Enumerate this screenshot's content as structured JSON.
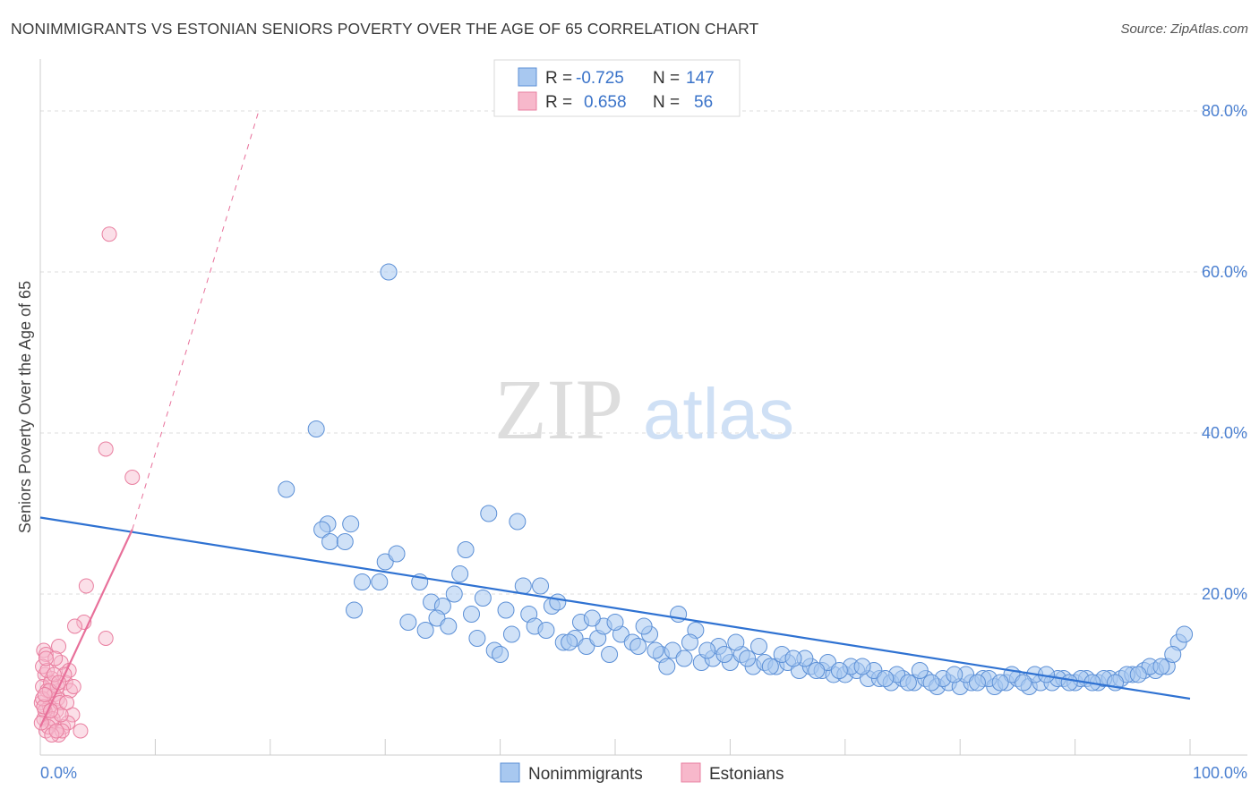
{
  "title": "NONIMMIGRANTS VS ESTONIAN SENIORS POVERTY OVER THE AGE OF 65 CORRELATION CHART",
  "source": "Source: ZipAtlas.com",
  "watermark": {
    "zip": "ZIP",
    "atlas": "atlas"
  },
  "legend_top": [
    {
      "r_label": "R =",
      "r_value": "-0.725",
      "n_label": "N =",
      "n_value": "147",
      "color": "#a8c8f0",
      "stroke": "#5b8fd6"
    },
    {
      "r_label": "R =",
      "r_value": "0.658",
      "n_label": "N =",
      "n_value": "56",
      "color": "#f7b8cb",
      "stroke": "#e97fa0"
    }
  ],
  "legend_bottom": [
    "Nonimmigrants",
    "Estonians"
  ],
  "chart_data": {
    "type": "scatter",
    "xlabel": "",
    "ylabel": "Seniors Poverty Over the Age of 65",
    "xlim": [
      0,
      100
    ],
    "ylim": [
      0,
      85
    ],
    "x_tick_labels": [
      "0.0%",
      "100.0%"
    ],
    "y_ticks": [
      20,
      40,
      60,
      80
    ],
    "y_tick_labels": [
      "20.0%",
      "40.0%",
      "60.0%",
      "80.0%"
    ],
    "grid": true,
    "colors": {
      "blue": "#5b8fd6",
      "blue_fill": "#a8c8f0",
      "pink": "#e97fa0",
      "pink_fill": "#f7b8cb",
      "blue_line": "#2f72d2",
      "pink_line": "#e8709a"
    },
    "trendlines": [
      {
        "series": "Nonimmigrants",
        "x": [
          0,
          100
        ],
        "y": [
          29.5,
          7.0
        ],
        "style": "solid"
      },
      {
        "series": "Estonians",
        "x": [
          0,
          8
        ],
        "y": [
          3.5,
          28.0
        ],
        "style": "solid"
      },
      {
        "series": "Estonians",
        "x": [
          8,
          19
        ],
        "y": [
          28.0,
          80.0
        ],
        "style": "dashed"
      }
    ],
    "series": [
      {
        "name": "Nonimmigrants",
        "points": [
          [
            30.3,
            60.0
          ],
          [
            24.0,
            40.5
          ],
          [
            21.4,
            33.0
          ],
          [
            25.0,
            28.7
          ],
          [
            24.5,
            28.0
          ],
          [
            25.2,
            26.5
          ],
          [
            27.0,
            28.7
          ],
          [
            26.5,
            26.5
          ],
          [
            28.0,
            21.5
          ],
          [
            27.3,
            18.0
          ],
          [
            29.5,
            21.5
          ],
          [
            30.0,
            24.0
          ],
          [
            31.0,
            25.0
          ],
          [
            33.0,
            21.5
          ],
          [
            34.0,
            19.0
          ],
          [
            35.0,
            18.5
          ],
          [
            32.0,
            16.5
          ],
          [
            33.5,
            15.5
          ],
          [
            34.5,
            17.0
          ],
          [
            35.5,
            16.0
          ],
          [
            36.0,
            20.0
          ],
          [
            37.5,
            17.5
          ],
          [
            38.0,
            14.5
          ],
          [
            39.5,
            13.0
          ],
          [
            40.0,
            12.5
          ],
          [
            41.0,
            15.0
          ],
          [
            42.5,
            17.5
          ],
          [
            43.0,
            16.0
          ],
          [
            44.0,
            15.5
          ],
          [
            45.5,
            14.0
          ],
          [
            46.5,
            14.5
          ],
          [
            47.5,
            13.5
          ],
          [
            48.5,
            14.5
          ],
          [
            49.0,
            16.0
          ],
          [
            50.5,
            15.0
          ],
          [
            51.5,
            14.0
          ],
          [
            52.0,
            13.5
          ],
          [
            53.0,
            15.0
          ],
          [
            54.0,
            12.5
          ],
          [
            55.0,
            13.0
          ],
          [
            56.0,
            12.0
          ],
          [
            57.5,
            11.5
          ],
          [
            58.5,
            12.0
          ],
          [
            59.0,
            13.5
          ],
          [
            60.0,
            11.5
          ],
          [
            61.0,
            12.5
          ],
          [
            62.0,
            11.0
          ],
          [
            63.0,
            11.5
          ],
          [
            64.0,
            11.0
          ],
          [
            65.0,
            11.5
          ],
          [
            66.0,
            10.5
          ],
          [
            67.0,
            11.0
          ],
          [
            68.0,
            10.5
          ],
          [
            69.0,
            10.0
          ],
          [
            70.0,
            10.0
          ],
          [
            71.0,
            10.5
          ],
          [
            72.0,
            9.5
          ],
          [
            73.0,
            9.5
          ],
          [
            74.0,
            9.0
          ],
          [
            75.0,
            9.5
          ],
          [
            76.0,
            9.0
          ],
          [
            77.0,
            9.5
          ],
          [
            78.0,
            8.5
          ],
          [
            79.0,
            9.0
          ],
          [
            80.0,
            8.5
          ],
          [
            81.0,
            9.0
          ],
          [
            82.0,
            9.5
          ],
          [
            83.0,
            8.5
          ],
          [
            84.0,
            9.0
          ],
          [
            85.0,
            9.5
          ],
          [
            86.0,
            8.5
          ],
          [
            87.0,
            9.0
          ],
          [
            88.0,
            9.0
          ],
          [
            89.0,
            9.5
          ],
          [
            90.0,
            9.0
          ],
          [
            91.0,
            9.5
          ],
          [
            92.0,
            9.0
          ],
          [
            93.0,
            9.5
          ],
          [
            94.0,
            9.5
          ],
          [
            95.0,
            10.0
          ],
          [
            96.0,
            10.5
          ],
          [
            97.0,
            10.5
          ],
          [
            98.0,
            11.0
          ],
          [
            99.0,
            14.0
          ],
          [
            99.5,
            15.0
          ],
          [
            96.5,
            11.0
          ],
          [
            94.5,
            10.0
          ],
          [
            92.5,
            9.5
          ],
          [
            36.5,
            22.5
          ],
          [
            42.0,
            21.0
          ],
          [
            44.5,
            18.5
          ],
          [
            46.0,
            14.0
          ],
          [
            47.0,
            16.5
          ],
          [
            52.5,
            16.0
          ],
          [
            55.5,
            17.5
          ],
          [
            57.0,
            15.5
          ],
          [
            58.0,
            13.0
          ],
          [
            60.5,
            14.0
          ],
          [
            62.5,
            13.5
          ],
          [
            64.5,
            12.5
          ],
          [
            66.5,
            12.0
          ],
          [
            68.5,
            11.5
          ],
          [
            70.5,
            11.0
          ],
          [
            72.5,
            10.5
          ],
          [
            74.5,
            10.0
          ],
          [
            76.5,
            10.5
          ],
          [
            78.5,
            9.5
          ],
          [
            80.5,
            10.0
          ],
          [
            82.5,
            9.5
          ],
          [
            84.5,
            10.0
          ],
          [
            86.5,
            10.0
          ],
          [
            88.5,
            9.5
          ],
          [
            90.5,
            9.5
          ],
          [
            91.5,
            9.0
          ],
          [
            93.5,
            9.0
          ],
          [
            95.5,
            10.0
          ],
          [
            97.5,
            11.0
          ],
          [
            98.5,
            12.5
          ],
          [
            45.0,
            19.0
          ],
          [
            37.0,
            25.5
          ],
          [
            39.0,
            30.0
          ],
          [
            41.5,
            29.0
          ],
          [
            43.5,
            21.0
          ],
          [
            40.5,
            18.0
          ],
          [
            38.5,
            19.5
          ],
          [
            48.0,
            17.0
          ],
          [
            50.0,
            16.5
          ],
          [
            53.5,
            13.0
          ],
          [
            56.5,
            14.0
          ],
          [
            59.5,
            12.5
          ],
          [
            61.5,
            12.0
          ],
          [
            63.5,
            11.0
          ],
          [
            65.5,
            12.0
          ],
          [
            67.5,
            10.5
          ],
          [
            69.5,
            10.5
          ],
          [
            71.5,
            11.0
          ],
          [
            73.5,
            9.5
          ],
          [
            75.5,
            9.0
          ],
          [
            77.5,
            9.0
          ],
          [
            79.5,
            10.0
          ],
          [
            81.5,
            9.0
          ],
          [
            83.5,
            9.0
          ],
          [
            85.5,
            9.0
          ],
          [
            87.5,
            10.0
          ],
          [
            89.5,
            9.0
          ],
          [
            54.5,
            11.0
          ],
          [
            49.5,
            12.5
          ]
        ]
      },
      {
        "name": "Estonians",
        "points": [
          [
            6.0,
            64.7
          ],
          [
            5.7,
            38.0
          ],
          [
            8.0,
            34.5
          ],
          [
            4.0,
            21.0
          ],
          [
            3.8,
            16.5
          ],
          [
            3.0,
            16.0
          ],
          [
            5.7,
            14.5
          ],
          [
            1.6,
            13.5
          ],
          [
            0.3,
            13.0
          ],
          [
            0.5,
            12.5
          ],
          [
            1.8,
            11.5
          ],
          [
            2.5,
            10.5
          ],
          [
            0.4,
            10.0
          ],
          [
            1.0,
            9.5
          ],
          [
            2.2,
            9.0
          ],
          [
            0.2,
            8.5
          ],
          [
            0.6,
            8.0
          ],
          [
            1.2,
            7.5
          ],
          [
            1.5,
            7.0
          ],
          [
            0.1,
            6.5
          ],
          [
            0.8,
            6.0
          ],
          [
            1.4,
            5.5
          ],
          [
            2.8,
            5.0
          ],
          [
            0.3,
            4.5
          ],
          [
            1.0,
            4.0
          ],
          [
            2.0,
            3.5
          ],
          [
            0.5,
            3.0
          ],
          [
            1.6,
            2.5
          ],
          [
            3.5,
            3.0
          ],
          [
            0.2,
            11.0
          ],
          [
            1.3,
            12.0
          ],
          [
            2.6,
            8.0
          ],
          [
            0.9,
            9.0
          ],
          [
            1.7,
            6.5
          ],
          [
            0.4,
            5.5
          ],
          [
            1.1,
            4.5
          ],
          [
            2.4,
            4.0
          ],
          [
            0.7,
            3.5
          ],
          [
            1.9,
            3.0
          ],
          [
            0.2,
            7.0
          ],
          [
            1.5,
            8.5
          ],
          [
            0.6,
            10.5
          ],
          [
            2.1,
            10.0
          ],
          [
            1.0,
            2.5
          ],
          [
            0.3,
            6.0
          ],
          [
            1.8,
            5.0
          ],
          [
            0.8,
            8.0
          ],
          [
            1.4,
            3.0
          ],
          [
            2.9,
            8.5
          ],
          [
            0.5,
            12.0
          ],
          [
            1.2,
            10.0
          ],
          [
            0.1,
            4.0
          ],
          [
            1.6,
            9.0
          ],
          [
            0.9,
            5.5
          ],
          [
            2.3,
            6.5
          ],
          [
            0.4,
            7.5
          ]
        ]
      }
    ]
  }
}
